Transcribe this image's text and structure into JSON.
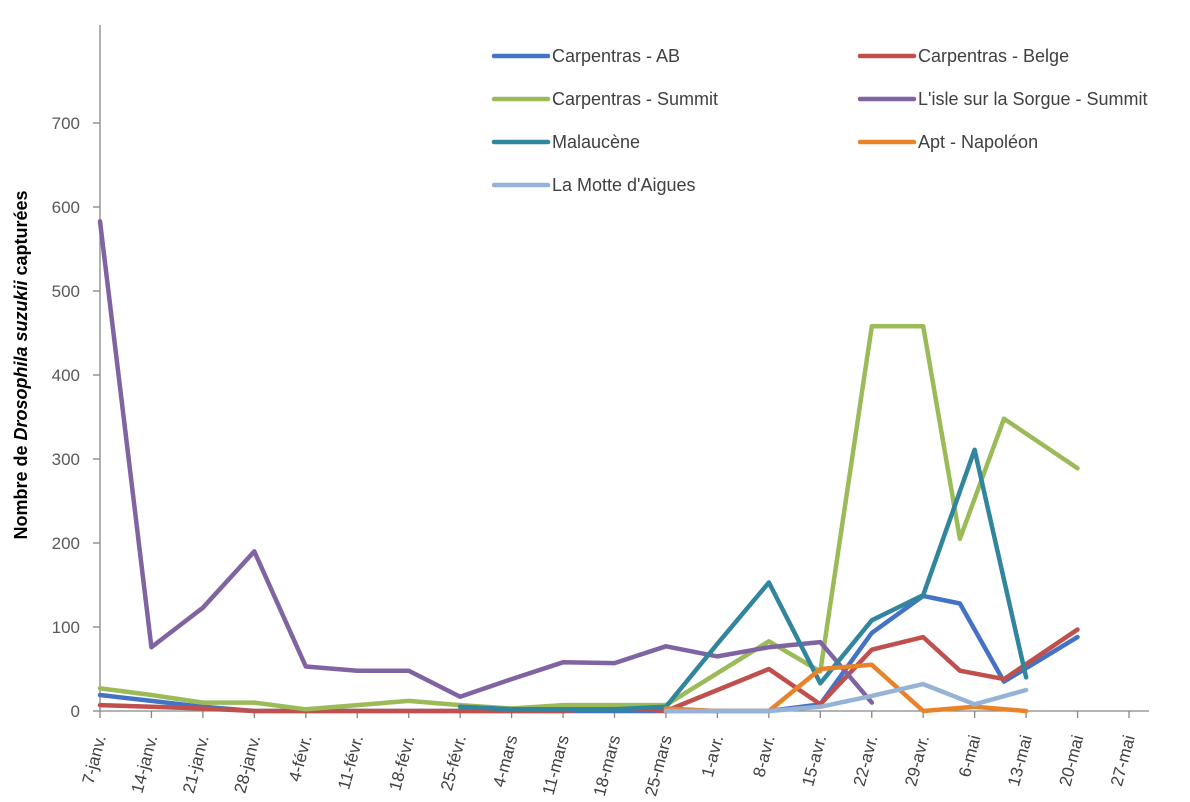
{
  "chart_data": {
    "type": "line",
    "ylabel_prefix": "Nombre de ",
    "ylabel_italic": "Drosophila suzukii",
    "ylabel_suffix": " capturées",
    "ylim": [
      0,
      700
    ],
    "yticks": [
      0,
      100,
      200,
      300,
      400,
      500,
      600,
      700
    ],
    "x_tick_labels": [
      "7-janv.",
      "14-janv.",
      "21-janv.",
      "28-janv.",
      "4-févr.",
      "11-févr.",
      "18-févr.",
      "25-févr.",
      "4-mars",
      "11-mars",
      "18-mars",
      "25-mars",
      "1-avr.",
      "8-avr.",
      "15-avr.",
      "22-avr.",
      "29-avr.",
      "6-mai",
      "13-mai",
      "20-mai",
      "27-mai"
    ],
    "x_unit": "day of year (7 = 7-janv.)",
    "xlim": [
      7,
      147
    ],
    "grid": false,
    "legend_position": "top-right",
    "series": [
      {
        "name": "Carpentras - AB",
        "color": "#4472C4",
        "points": [
          [
            7,
            19
          ],
          [
            14,
            12
          ],
          [
            21,
            5
          ],
          [
            28,
            0
          ],
          [
            35,
            0
          ],
          [
            42,
            0
          ],
          [
            49,
            0
          ],
          [
            56,
            0
          ],
          [
            63,
            0
          ],
          [
            70,
            0
          ],
          [
            77,
            0
          ],
          [
            84,
            0
          ],
          [
            91,
            0
          ],
          [
            98,
            0
          ],
          [
            105,
            8
          ],
          [
            112,
            93
          ],
          [
            119,
            137
          ],
          [
            124,
            128
          ],
          [
            130,
            35
          ],
          [
            140,
            88
          ]
        ]
      },
      {
        "name": "Carpentras - Belge",
        "color": "#C0504D",
        "points": [
          [
            7,
            7
          ],
          [
            14,
            5
          ],
          [
            21,
            3
          ],
          [
            28,
            0
          ],
          [
            35,
            0
          ],
          [
            42,
            0
          ],
          [
            49,
            0
          ],
          [
            56,
            0
          ],
          [
            63,
            0
          ],
          [
            70,
            0
          ],
          [
            77,
            5
          ],
          [
            84,
            0
          ],
          [
            91,
            25
          ],
          [
            98,
            50
          ],
          [
            105,
            8
          ],
          [
            112,
            73
          ],
          [
            119,
            88
          ],
          [
            124,
            48
          ],
          [
            130,
            38
          ],
          [
            140,
            97
          ]
        ]
      },
      {
        "name": "Carpentras - Summit",
        "color": "#9BBB59",
        "points": [
          [
            7,
            27
          ],
          [
            14,
            19
          ],
          [
            21,
            10
          ],
          [
            28,
            10
          ],
          [
            35,
            2
          ],
          [
            42,
            7
          ],
          [
            49,
            12
          ],
          [
            56,
            7
          ],
          [
            63,
            3
          ],
          [
            70,
            7
          ],
          [
            77,
            7
          ],
          [
            84,
            7
          ],
          [
            91,
            45
          ],
          [
            98,
            83
          ],
          [
            105,
            47
          ],
          [
            112,
            458
          ],
          [
            119,
            458
          ],
          [
            124,
            205
          ],
          [
            130,
            348
          ],
          [
            140,
            289
          ]
        ]
      },
      {
        "name": "L'isle sur la Sorgue - Summit",
        "color": "#8064A2",
        "points": [
          [
            7,
            583
          ],
          [
            14,
            76
          ],
          [
            21,
            123
          ],
          [
            28,
            190
          ],
          [
            35,
            53
          ],
          [
            42,
            48
          ],
          [
            49,
            48
          ],
          [
            56,
            17
          ],
          [
            63,
            38
          ],
          [
            70,
            58
          ],
          [
            77,
            57
          ],
          [
            84,
            77
          ],
          [
            91,
            65
          ],
          [
            98,
            76
          ],
          [
            105,
            82
          ],
          [
            112,
            10
          ]
        ]
      },
      {
        "name": "Malaucène",
        "color": "#31859C",
        "points": [
          [
            56,
            5
          ],
          [
            63,
            2
          ],
          [
            70,
            2
          ],
          [
            77,
            2
          ],
          [
            84,
            5
          ],
          [
            91,
            80
          ],
          [
            98,
            153
          ],
          [
            105,
            33
          ],
          [
            112,
            108
          ],
          [
            119,
            138
          ],
          [
            126,
            311
          ],
          [
            133,
            40
          ]
        ]
      },
      {
        "name": "Apt - Napoléon",
        "color": "#E9832A",
        "points": [
          [
            84,
            3
          ],
          [
            91,
            0
          ],
          [
            98,
            0
          ],
          [
            105,
            50
          ],
          [
            112,
            55
          ],
          [
            119,
            0
          ],
          [
            126,
            5
          ],
          [
            133,
            0
          ]
        ]
      },
      {
        "name": "La Motte d'Aigues",
        "color": "#95B3D7",
        "points": [
          [
            84,
            0
          ],
          [
            91,
            0
          ],
          [
            98,
            0
          ],
          [
            105,
            5
          ],
          [
            112,
            18
          ],
          [
            119,
            32
          ],
          [
            126,
            8
          ],
          [
            133,
            25
          ]
        ]
      }
    ]
  }
}
